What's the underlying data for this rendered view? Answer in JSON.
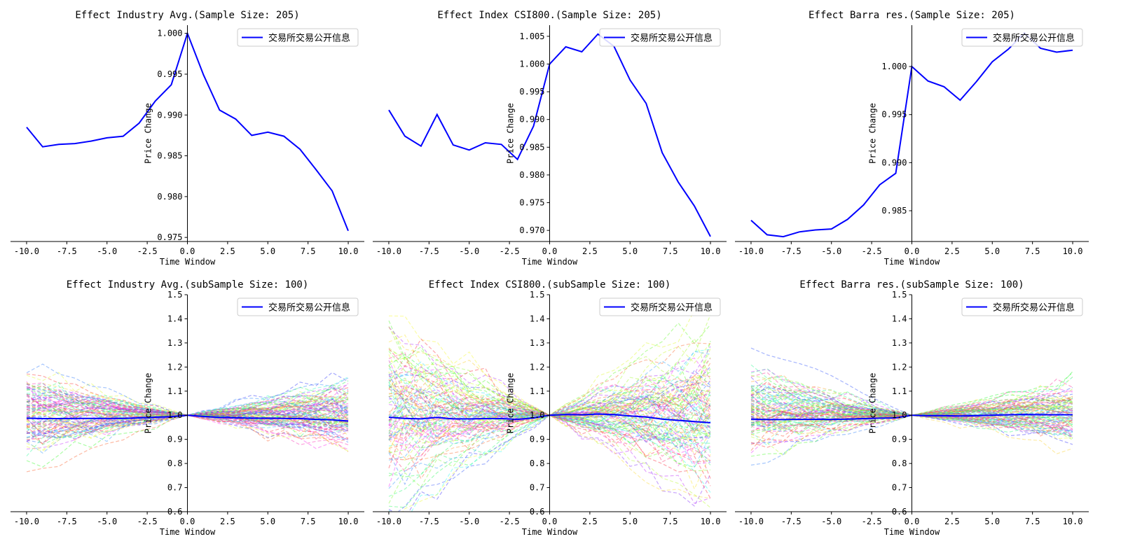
{
  "colors": {
    "main_line": "#0000ff",
    "axis": "#000000",
    "legend_border": "#cccccc"
  },
  "chart_data": [
    {
      "type": "line",
      "title": "Effect Industry Avg.(Sample Size: 205)",
      "xlabel": "Time Window",
      "ylabel": "Price Change",
      "xlim": [
        -11,
        11
      ],
      "ylim": [
        0.9745,
        1.001
      ],
      "xticks": [
        "-10.0",
        "-7.5",
        "-5.0",
        "-2.5",
        "0.0",
        "2.5",
        "5.0",
        "7.5",
        "10.0"
      ],
      "yticks": [
        "0.975",
        "0.980",
        "0.985",
        "0.990",
        "0.995",
        "1.000"
      ],
      "legend": {
        "position": "top-right",
        "labels": [
          "交易所交易公开信息"
        ]
      },
      "grid": false,
      "x": [
        -10,
        -9,
        -8,
        -7,
        -6,
        -5,
        -4,
        -3,
        -2,
        -1,
        0,
        1,
        2,
        3,
        4,
        5,
        6,
        7,
        8,
        9,
        10
      ],
      "series": [
        {
          "name": "交易所交易公开信息",
          "values": [
            0.9885,
            0.9861,
            0.9864,
            0.9865,
            0.9868,
            0.9872,
            0.9874,
            0.989,
            0.9917,
            0.9937,
            1.0,
            0.9949,
            0.9906,
            0.9895,
            0.9875,
            0.9879,
            0.9874,
            0.9858,
            0.9833,
            0.9807,
            0.9758
          ]
        }
      ]
    },
    {
      "type": "line",
      "title": "Effect Index CSI800.(Sample Size: 205)",
      "xlabel": "Time Window",
      "ylabel": "Price Change",
      "xlim": [
        -11,
        11
      ],
      "ylim": [
        0.968,
        1.007
      ],
      "xticks": [
        "-10.0",
        "-7.5",
        "-5.0",
        "-2.5",
        "0.0",
        "2.5",
        "5.0",
        "7.5",
        "10.0"
      ],
      "yticks": [
        "0.970",
        "0.975",
        "0.980",
        "0.985",
        "0.990",
        "0.995",
        "1.000",
        "1.005"
      ],
      "legend": {
        "position": "top-right",
        "labels": [
          "交易所交易公开信息"
        ]
      },
      "grid": false,
      "x": [
        -10,
        -9,
        -8,
        -7,
        -6,
        -5,
        -4,
        -3,
        -2,
        -1,
        0,
        1,
        2,
        3,
        4,
        5,
        6,
        7,
        8,
        9,
        10
      ],
      "series": [
        {
          "name": "交易所交易公开信息",
          "values": [
            0.9917,
            0.987,
            0.9852,
            0.9909,
            0.9854,
            0.9845,
            0.9858,
            0.9855,
            0.9828,
            0.9888,
            1.0,
            1.0031,
            1.0022,
            1.0054,
            1.0032,
            0.9971,
            0.9929,
            0.984,
            0.9787,
            0.9744,
            0.9689
          ]
        }
      ]
    },
    {
      "type": "line",
      "title": "Effect Barra res.(Sample Size: 205)",
      "xlabel": "Time Window",
      "ylabel": "Price Change",
      "xlim": [
        -11,
        11
      ],
      "ylim": [
        0.9818,
        1.0043
      ],
      "xticks": [
        "-10.0",
        "-7.5",
        "-5.0",
        "-2.5",
        "0.0",
        "2.5",
        "5.0",
        "7.5",
        "10.0"
      ],
      "yticks": [
        "0.985",
        "0.990",
        "0.995",
        "1.000"
      ],
      "legend": {
        "position": "top-right",
        "labels": [
          "交易所交易公开信息"
        ]
      },
      "grid": false,
      "x": [
        -10,
        -9,
        -8,
        -7,
        -6,
        -5,
        -4,
        -3,
        -2,
        -1,
        0,
        1,
        2,
        3,
        4,
        5,
        6,
        7,
        8,
        9,
        10
      ],
      "series": [
        {
          "name": "交易所交易公开信息",
          "values": [
            0.984,
            0.9825,
            0.9823,
            0.9828,
            0.983,
            0.9831,
            0.9841,
            0.9856,
            0.9877,
            0.9889,
            1.0,
            0.9985,
            0.9979,
            0.9965,
            0.9984,
            1.0005,
            1.0018,
            1.0035,
            1.0019,
            1.0015,
            1.0017
          ]
        }
      ]
    },
    {
      "type": "line",
      "title": "Effect Industry Avg.(subSample Size: 100)",
      "xlabel": "Time Window",
      "ylabel": "Price Change",
      "xlim": [
        -11,
        11
      ],
      "ylim": [
        0.6,
        1.5
      ],
      "xticks": [
        "-10.0",
        "-7.5",
        "-5.0",
        "-2.5",
        "0.0",
        "2.5",
        "5.0",
        "7.5",
        "10.0"
      ],
      "yticks": [
        "0.6",
        "0.7",
        "0.8",
        "0.9",
        "1.0",
        "1.1",
        "1.2",
        "1.3",
        "1.4",
        "1.5"
      ],
      "legend": {
        "position": "top-right",
        "labels": [
          "交易所交易公开信息"
        ]
      },
      "grid": false,
      "x": [
        -10,
        -9,
        -8,
        -7,
        -6,
        -5,
        -4,
        -3,
        -2,
        -1,
        0,
        1,
        2,
        3,
        4,
        5,
        6,
        7,
        8,
        9,
        10
      ],
      "sample_paths": {
        "count": 100,
        "style": "dashed",
        "alpha": 0.45,
        "spread_pre": 0.08,
        "spread_post": 0.07
      },
      "series": [
        {
          "name": "交易所交易公开信息",
          "values": [
            0.988,
            0.986,
            0.986,
            0.987,
            0.987,
            0.987,
            0.987,
            0.989,
            0.992,
            0.994,
            1.0,
            0.995,
            0.991,
            0.99,
            0.988,
            0.988,
            0.987,
            0.986,
            0.983,
            0.981,
            0.976
          ]
        }
      ]
    },
    {
      "type": "line",
      "title": "Effect Index CSI800.(subSample Size: 100)",
      "xlabel": "Time Window",
      "ylabel": "Price Change",
      "xlim": [
        -11,
        11
      ],
      "ylim": [
        0.6,
        1.5
      ],
      "xticks": [
        "-10.0",
        "-7.5",
        "-5.0",
        "-2.5",
        "0.0",
        "2.5",
        "5.0",
        "7.5",
        "10.0"
      ],
      "yticks": [
        "0.6",
        "0.7",
        "0.8",
        "0.9",
        "1.0",
        "1.1",
        "1.2",
        "1.3",
        "1.4",
        "1.5"
      ],
      "legend": {
        "position": "top-right",
        "labels": [
          "交易所交易公开信息"
        ]
      },
      "grid": false,
      "x": [
        -10,
        -9,
        -8,
        -7,
        -6,
        -5,
        -4,
        -3,
        -2,
        -1,
        0,
        1,
        2,
        3,
        4,
        5,
        6,
        7,
        8,
        9,
        10
      ],
      "sample_paths": {
        "count": 100,
        "style": "dashed",
        "alpha": 0.45,
        "spread_pre": 0.17,
        "spread_post": 0.16
      },
      "series": [
        {
          "name": "交易所交易公开信息",
          "values": [
            0.992,
            0.987,
            0.985,
            0.991,
            0.985,
            0.985,
            0.986,
            0.986,
            0.983,
            0.989,
            1.0,
            1.003,
            1.002,
            1.005,
            1.003,
            0.997,
            0.993,
            0.984,
            0.979,
            0.974,
            0.969
          ]
        }
      ]
    },
    {
      "type": "line",
      "title": "Effect Barra res.(subSample Size: 100)",
      "xlabel": "Time Window",
      "ylabel": "Price Change",
      "xlim": [
        -11,
        11
      ],
      "ylim": [
        0.6,
        1.5
      ],
      "xticks": [
        "-10.0",
        "-7.5",
        "-5.0",
        "-2.5",
        "0.0",
        "2.5",
        "5.0",
        "7.5",
        "10.0"
      ],
      "yticks": [
        "0.6",
        "0.7",
        "0.8",
        "0.9",
        "1.0",
        "1.1",
        "1.2",
        "1.3",
        "1.4",
        "1.5"
      ],
      "legend": {
        "position": "top-right",
        "labels": [
          "交易所交易公开信息"
        ]
      },
      "grid": false,
      "x": [
        -10,
        -9,
        -8,
        -7,
        -6,
        -5,
        -4,
        -3,
        -2,
        -1,
        0,
        1,
        2,
        3,
        4,
        5,
        6,
        7,
        8,
        9,
        10
      ],
      "sample_paths": {
        "count": 100,
        "style": "dashed",
        "alpha": 0.45,
        "spread_pre": 0.08,
        "spread_post": 0.06
      },
      "series": [
        {
          "name": "交易所交易公开信息",
          "values": [
            0.984,
            0.982,
            0.982,
            0.983,
            0.983,
            0.983,
            0.984,
            0.986,
            0.988,
            0.989,
            1.0,
            0.998,
            0.998,
            0.997,
            0.998,
            1.0,
            1.002,
            1.003,
            1.002,
            1.002,
            1.002
          ]
        }
      ]
    }
  ]
}
